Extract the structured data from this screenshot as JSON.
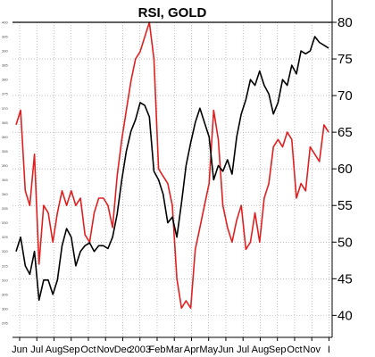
{
  "chart_data": {
    "type": "line",
    "title": "RSI, GOLD",
    "x_labels": [
      "Jun",
      "Jul",
      "Aug",
      "Sep",
      "Oct",
      "Nov",
      "Dec",
      "2003",
      "Feb",
      "Mar",
      "Apr",
      "May",
      "Jun",
      "Jul",
      "Aug",
      "Sep",
      "Oct",
      "Nov",
      "I"
    ],
    "right_axis": {
      "range": [
        37,
        80
      ],
      "ticks": [
        40,
        45,
        50,
        55,
        60,
        65,
        70,
        75,
        80
      ]
    },
    "left_axis": {
      "range": [
        290,
        400
      ],
      "ticks": [
        295,
        300,
        305,
        310,
        315,
        320,
        325,
        330,
        335,
        340,
        345,
        350,
        355,
        360,
        365,
        370,
        375,
        380,
        385,
        390,
        395,
        400
      ]
    },
    "grid": true,
    "series": [
      {
        "axis": "right",
        "color": "#e02020",
        "values": [
          66,
          68,
          57,
          55,
          62,
          47,
          55,
          54,
          50,
          54,
          57,
          55,
          57,
          55,
          56,
          51,
          50,
          54,
          56,
          56,
          55,
          52,
          59,
          64,
          68,
          72,
          75,
          76,
          78,
          80,
          75,
          60,
          59,
          58,
          55,
          45,
          41,
          42,
          41,
          49,
          52,
          55,
          58,
          68,
          64,
          55,
          52,
          50,
          53,
          55,
          49,
          50,
          54,
          50,
          56,
          58,
          63,
          64,
          63,
          65,
          64,
          56,
          58,
          57,
          63,
          62,
          61,
          66,
          65
        ]
      },
      {
        "axis": "left",
        "color": "#000000",
        "values": [
          320,
          325,
          315,
          312,
          320,
          303,
          310,
          310,
          305,
          310,
          322,
          328,
          325,
          315,
          320,
          322,
          323,
          320,
          322,
          322,
          321,
          325,
          333,
          345,
          355,
          362,
          366,
          372,
          371,
          367,
          348,
          345,
          340,
          330,
          332,
          325,
          337,
          350,
          358,
          365,
          370,
          365,
          360,
          345,
          350,
          348,
          352,
          347,
          360,
          368,
          373,
          380,
          378,
          383,
          378,
          375,
          368,
          372,
          380,
          378,
          385,
          382,
          390,
          389,
          390,
          395,
          393,
          392,
          391
        ]
      }
    ]
  }
}
